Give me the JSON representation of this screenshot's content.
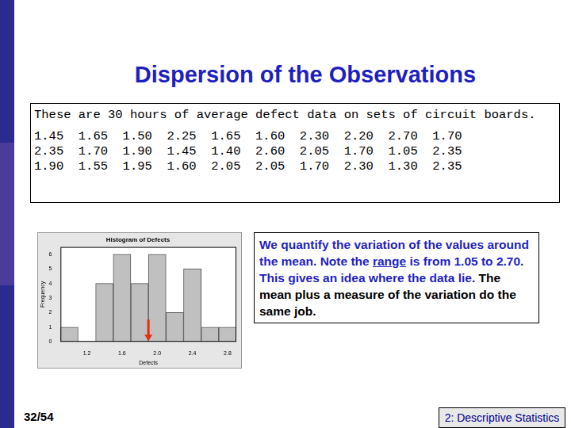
{
  "slide": {
    "title": "Dispersion of the Observations",
    "data_box": {
      "intro": "These are 30 hours of average defect data on sets of circuit boards.",
      "rows": [
        [
          "1.45",
          "1.65",
          "1.50",
          "2.25",
          "1.65",
          "1.60",
          "2.30",
          "2.20",
          "2.70",
          "1.70"
        ],
        [
          "2.35",
          "1.70",
          "1.90",
          "1.45",
          "1.40",
          "2.60",
          "2.05",
          "1.70",
          "1.05",
          "2.35"
        ],
        [
          "1.90",
          "1.55",
          "1.95",
          "1.60",
          "2.05",
          "2.05",
          "1.70",
          "2.30",
          "1.30",
          "2.35"
        ]
      ]
    },
    "text_box": [
      {
        "text": "We quantify the variation of the values around the mean.  Note the ",
        "color": "#1f1fbf"
      },
      {
        "text": "range",
        "color": "#1f1fbf",
        "underline": true
      },
      {
        "text": " is from 1.05 to 2.70.  This gives an idea where the data lie.",
        "color": "#1f1fbf"
      },
      {
        "text": "  The mean plus a measure of the variation do the same job.",
        "color": "#000000"
      }
    ],
    "page": "32/54",
    "footer": "2: Descriptive Statistics"
  },
  "chart_data": {
    "type": "histogram",
    "title": "Histogram of Defects",
    "x_label": "Defects",
    "y_label": "Frequency",
    "bins": [
      0.9,
      1.1,
      1.3,
      1.5,
      1.7,
      1.9,
      2.1,
      2.3,
      2.5,
      2.7,
      2.9
    ],
    "values": [
      1,
      0,
      4,
      6,
      4,
      6,
      2,
      5,
      1,
      1
    ],
    "color": "#c0c0c0",
    "xlim": [
      0.9,
      2.9
    ],
    "ylim": [
      0,
      6.5
    ],
    "xticks": [
      1.2,
      1.6,
      {
        "value": 2,
        "label": "2.0"
      },
      2.4,
      2.8
    ],
    "yticks": [
      0,
      1,
      2,
      3,
      4,
      5,
      6
    ],
    "grid": false,
    "mean_arrow": 1.9
  }
}
